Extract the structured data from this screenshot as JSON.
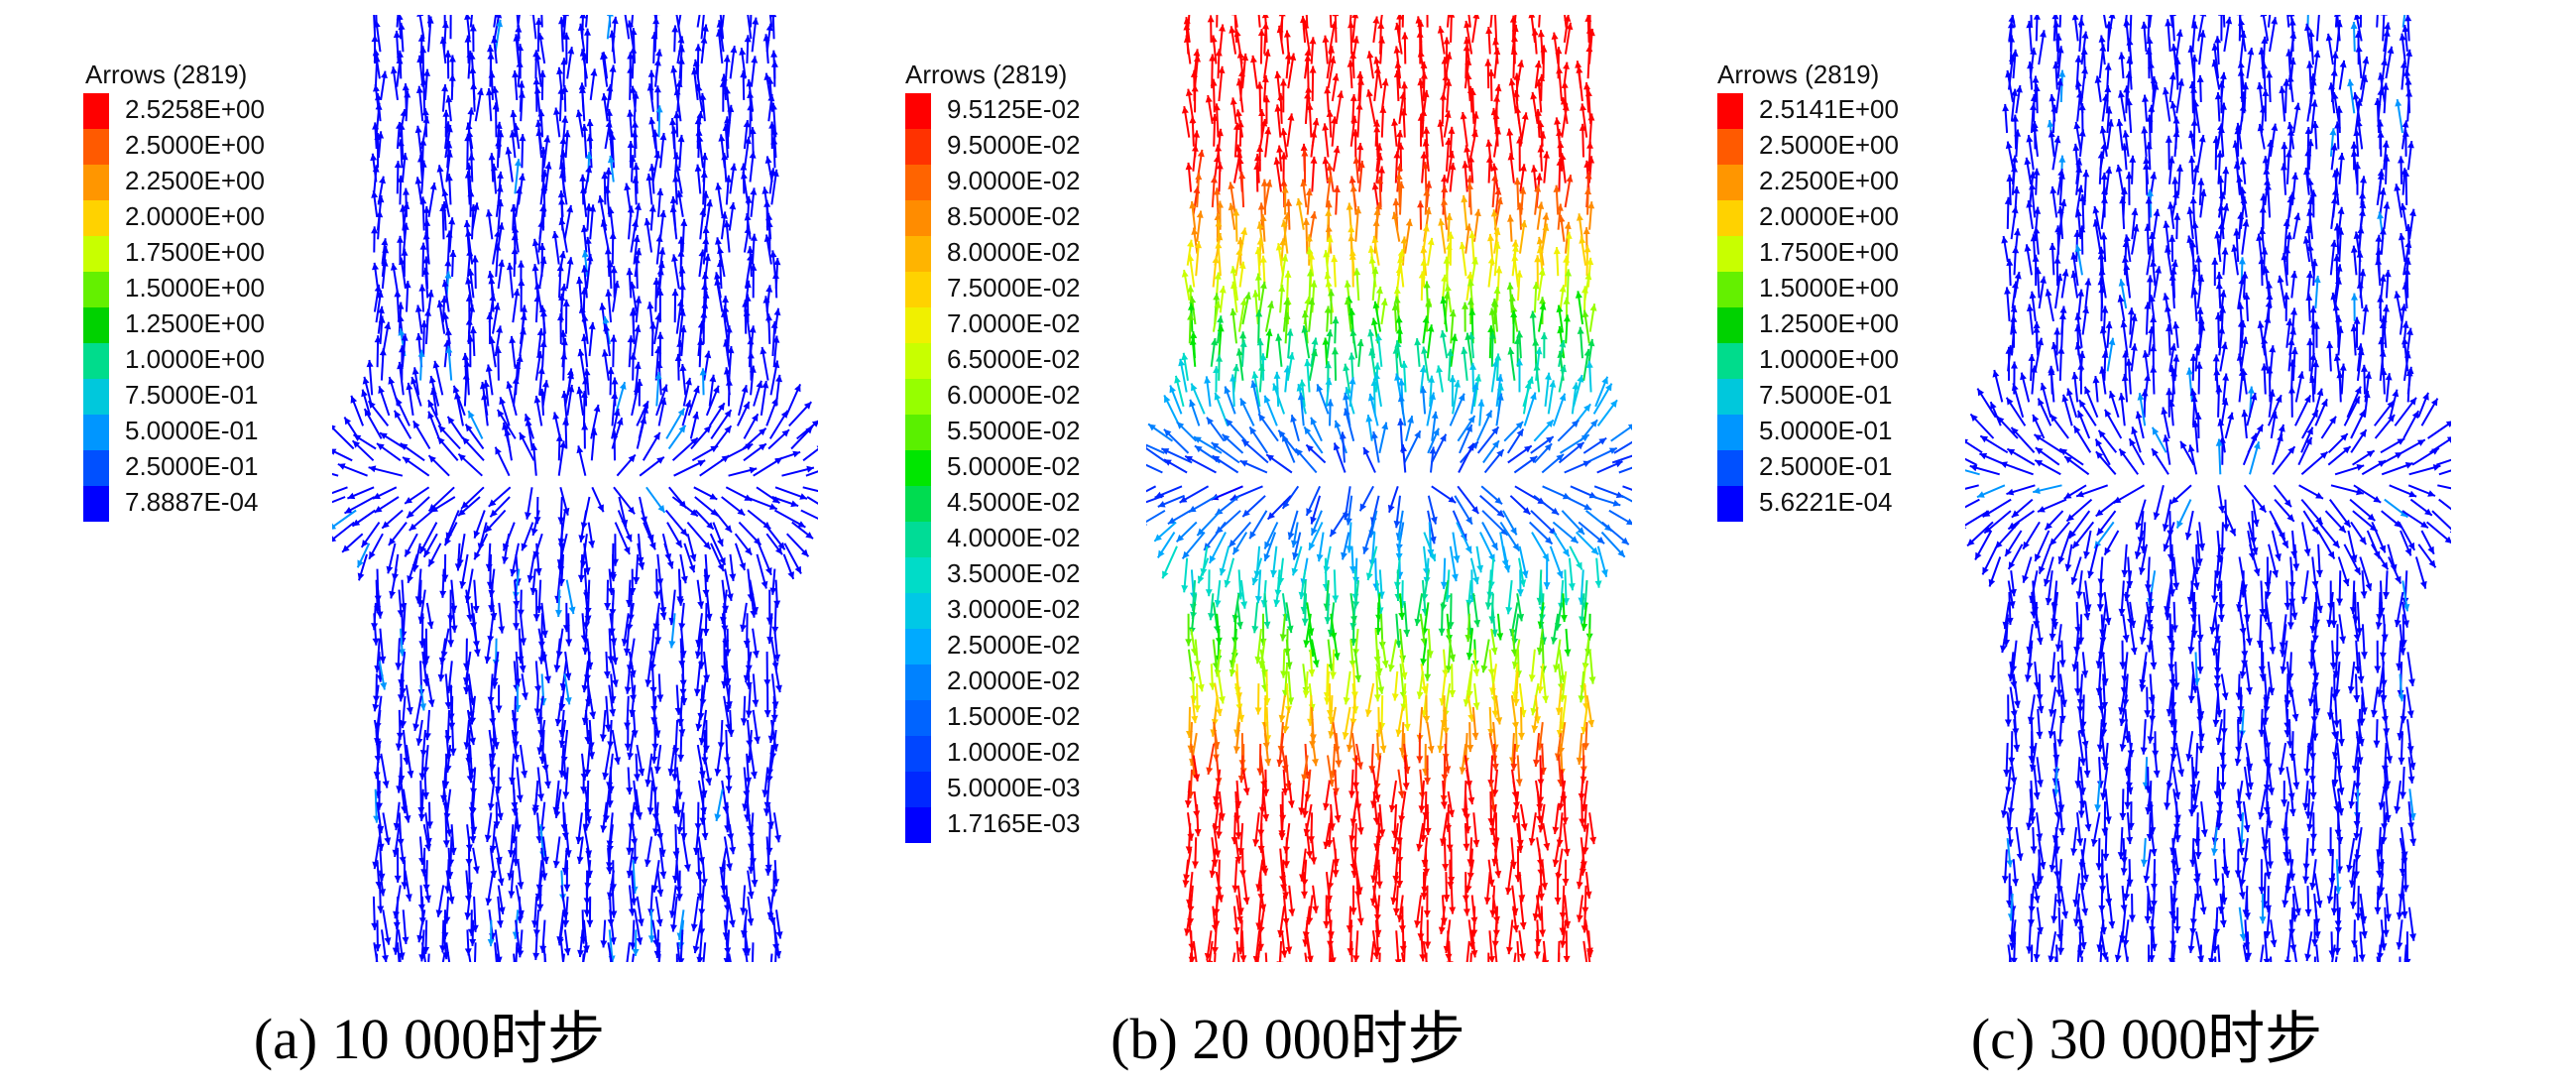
{
  "panels": [
    {
      "legend_title": "Arrows (2819)",
      "legend_labels": [
        "2.5258E+00",
        "2.5000E+00",
        "2.2500E+00",
        "2.0000E+00",
        "1.7500E+00",
        "1.5000E+00",
        "1.2500E+00",
        "1.0000E+00",
        "7.5000E-01",
        "5.0000E-01",
        "2.5000E-01",
        "7.8887E-04"
      ],
      "legend_colors": [
        "#ff0000",
        "#ff5a00",
        "#ff9600",
        "#ffd200",
        "#c8ff00",
        "#64f000",
        "#00d200",
        "#00dc8c",
        "#00c8dc",
        "#0096ff",
        "#0050ff",
        "#0000ff"
      ],
      "field_pattern": "uniform",
      "caption": "(a) 10 000时步"
    },
    {
      "legend_title": "Arrows (2819)",
      "legend_labels": [
        "9.5125E-02",
        "9.5000E-02",
        "9.0000E-02",
        "8.5000E-02",
        "8.0000E-02",
        "7.5000E-02",
        "7.0000E-02",
        "6.5000E-02",
        "6.0000E-02",
        "5.5000E-02",
        "5.0000E-02",
        "4.5000E-02",
        "4.0000E-02",
        "3.5000E-02",
        "3.0000E-02",
        "2.5000E-02",
        "2.0000E-02",
        "1.5000E-02",
        "1.0000E-02",
        "5.0000E-03",
        "1.7165E-03"
      ],
      "legend_colors": [
        "#ff0000",
        "#ff3200",
        "#ff6400",
        "#ff8c00",
        "#ffb400",
        "#ffd200",
        "#f0f000",
        "#c8ff00",
        "#96ff00",
        "#5af000",
        "#00e600",
        "#00dc50",
        "#00dc96",
        "#00dcc8",
        "#00c8e6",
        "#00aaff",
        "#0082ff",
        "#0064ff",
        "#0046ff",
        "#0028ff",
        "#0000ff"
      ],
      "field_pattern": "gradient",
      "caption": "(b) 20 000时步"
    },
    {
      "legend_title": "Arrows (2819)",
      "legend_labels": [
        "2.5141E+00",
        "2.5000E+00",
        "2.2500E+00",
        "2.0000E+00",
        "1.7500E+00",
        "1.5000E+00",
        "1.2500E+00",
        "1.0000E+00",
        "7.5000E-01",
        "5.0000E-01",
        "2.5000E-01",
        "5.6221E-04"
      ],
      "legend_colors": [
        "#ff0000",
        "#ff5a00",
        "#ff9600",
        "#ffd200",
        "#c8ff00",
        "#64f000",
        "#00d200",
        "#00dc8c",
        "#00c8dc",
        "#0096ff",
        "#0050ff",
        "#0000ff"
      ],
      "field_pattern": "uniform",
      "caption": "(c) 30 000时步"
    }
  ]
}
